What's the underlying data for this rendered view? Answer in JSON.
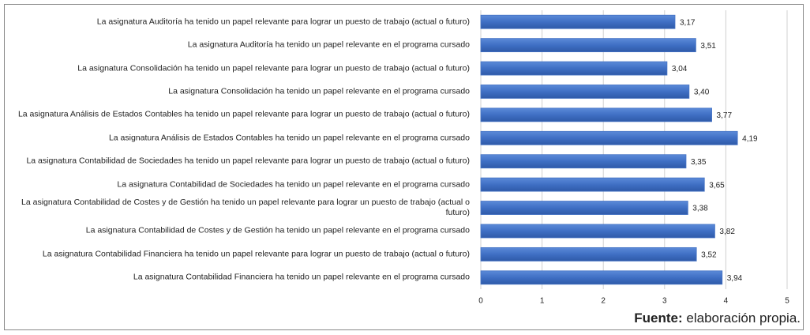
{
  "chart_data": {
    "type": "bar",
    "orientation": "horizontal",
    "categories": [
      "La asignatura Auditoría ha tenido un papel relevante para lograr un puesto de trabajo (actual o futuro)",
      "La asignatura Auditoría ha tenido un papel relevante en el programa cursado",
      "La asignatura Consolidación ha tenido un papel relevante para lograr un puesto de trabajo (actual o futuro)",
      "La asignatura Consolidación ha tenido un papel relevante en el programa cursado",
      "La asignatura Análisis de Estados Contables ha tenido un papel relevante para lograr un puesto de trabajo (actual o futuro)",
      "La asignatura Análisis de Estados Contables ha tenido un papel relevante en el programa cursado",
      "La asignatura Contabilidad de Sociedades ha tenido un papel relevante para lograr un puesto de trabajo (actual o futuro)",
      "La asignatura Contabilidad de Sociedades ha tenido un papel relevante en el programa cursado",
      "La asignatura Contabilidad de Costes y de Gestión ha tenido un papel relevante para lograr un puesto de trabajo (actual o futuro)",
      "La asignatura Contabilidad de Costes y de Gestión ha tenido un papel relevante en el programa cursado",
      "La asignatura Contabilidad Financiera ha tenido un papel relevante para lograr un puesto de trabajo (actual o futuro)",
      "La asignatura Contabilidad Financiera ha tenido un papel relevante en el programa cursado"
    ],
    "values": [
      3.17,
      3.51,
      3.04,
      3.4,
      3.77,
      4.19,
      3.35,
      3.65,
      3.38,
      3.82,
      3.52,
      3.94
    ],
    "value_labels": [
      "3,17",
      "3,51",
      "3,04",
      "3,40",
      "3,77",
      "4,19",
      "3,35",
      "3,65",
      "3,38",
      "3,82",
      "3,52",
      "3,94"
    ],
    "color": "#4472c4",
    "xlim": [
      0,
      5
    ],
    "xticks": [
      0,
      1,
      2,
      3,
      4,
      5
    ],
    "grid": true,
    "source_label": "Fuente:",
    "source": "elaboración propia."
  }
}
